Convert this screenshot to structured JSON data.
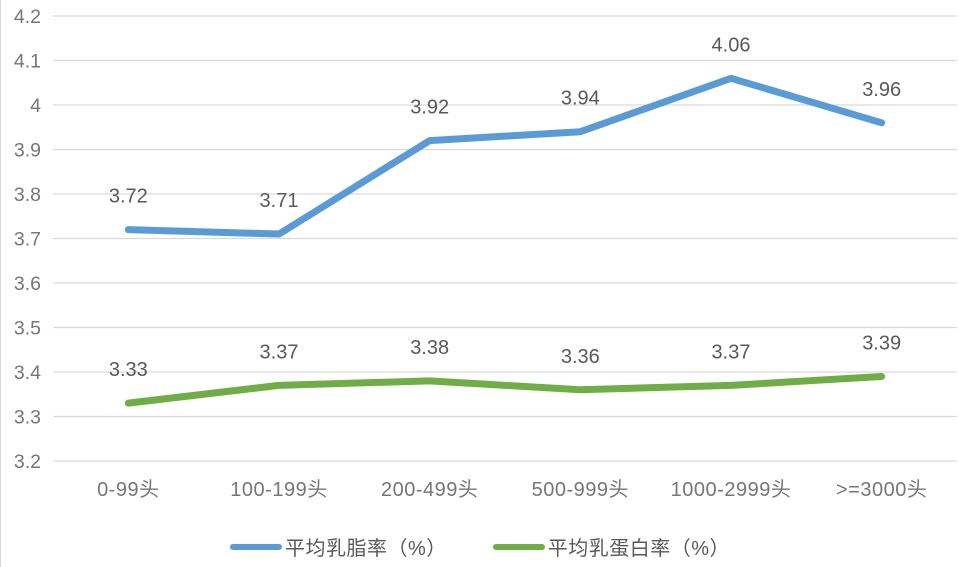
{
  "chart": {
    "background_color": "#FFFFFF",
    "grid_color": "#D9D9D9",
    "axis_tick_color": "#767676",
    "data_label_color": "#595959",
    "x_tick_color": "#767676",
    "border_color": "#D6D6D6"
  },
  "chart_data": {
    "type": "line",
    "title": "",
    "xlabel": "",
    "ylabel": "",
    "categories": [
      "0-99头",
      "100-199头",
      "200-499头",
      "500-999头",
      "1000-2999头",
      ">=3000头"
    ],
    "series": [
      {
        "name": "平均乳脂率（%）",
        "color": "#5B9BD5",
        "values": [
          3.72,
          3.71,
          3.92,
          3.94,
          4.06,
          3.96
        ]
      },
      {
        "name": "平均乳蛋白率（%）",
        "color": "#70AD47",
        "values": [
          3.33,
          3.37,
          3.38,
          3.36,
          3.37,
          3.39
        ]
      }
    ],
    "ylim": [
      3.2,
      4.2
    ],
    "ytick_step": 0.1,
    "yticks": [
      "4.2",
      "4.1",
      "4",
      "3.9",
      "3.8",
      "3.7",
      "3.6",
      "3.5",
      "3.4",
      "3.3",
      "3.2"
    ],
    "grid": true,
    "data_labels": true,
    "data_label_decimals": 2,
    "legend_position": "bottom"
  }
}
